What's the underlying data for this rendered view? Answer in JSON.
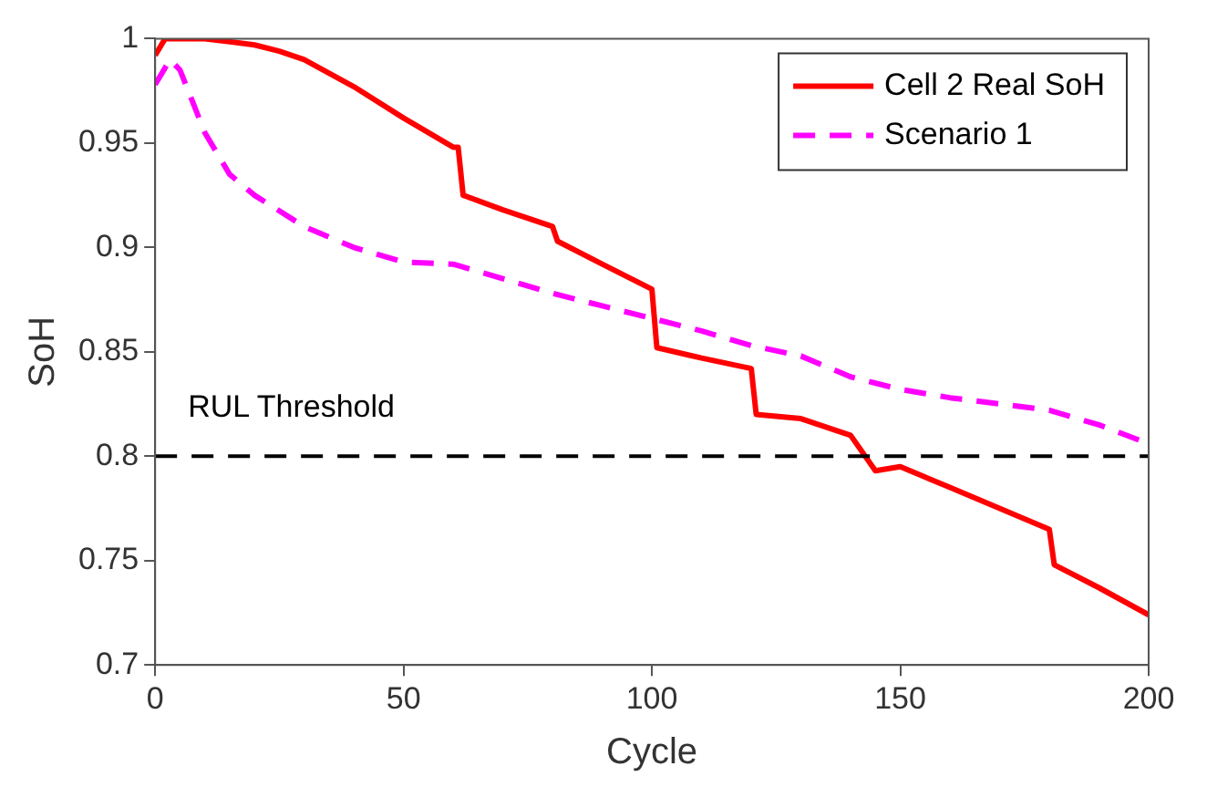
{
  "chart_data": {
    "type": "line",
    "xlabel": "Cycle",
    "ylabel": "SoH",
    "xlim": [
      0,
      200
    ],
    "xticks": [
      0,
      50,
      100,
      150,
      200
    ],
    "ylim": [
      0.7,
      1
    ],
    "yticks": [
      0.7,
      0.75,
      0.8,
      0.85,
      0.9,
      0.95,
      1
    ],
    "grid": false,
    "legend": "top right",
    "marker": "none",
    "ref_lines": [
      {
        "axis": "y",
        "value": 0.8,
        "label": "RUL Threshold",
        "color": "#000000",
        "line_style": "dashed"
      }
    ],
    "series": [
      {
        "name": "Cell 2 Real SoH",
        "color": "#ff0000",
        "line_style": "solid",
        "x": [
          0,
          2,
          5,
          10,
          20,
          25,
          30,
          40,
          50,
          60,
          61,
          62,
          70,
          80,
          81,
          90,
          100,
          101,
          110,
          120,
          121,
          130,
          140,
          145,
          150,
          160,
          170,
          180,
          181,
          190,
          200
        ],
        "values": [
          0.992,
          1.0,
          1.0,
          1.0,
          0.997,
          0.994,
          0.99,
          0.977,
          0.962,
          0.948,
          0.948,
          0.925,
          0.918,
          0.91,
          0.903,
          0.892,
          0.88,
          0.852,
          0.847,
          0.842,
          0.82,
          0.818,
          0.81,
          0.793,
          0.795,
          0.785,
          0.775,
          0.765,
          0.748,
          0.737,
          0.724
        ]
      },
      {
        "name": "Scenario 1",
        "color": "#ff00ff",
        "line_style": "dashed",
        "x": [
          0,
          3,
          5,
          10,
          15,
          20,
          30,
          40,
          50,
          60,
          70,
          80,
          90,
          100,
          110,
          120,
          130,
          140,
          150,
          160,
          170,
          180,
          190,
          200
        ],
        "values": [
          0.978,
          0.99,
          0.985,
          0.955,
          0.935,
          0.925,
          0.91,
          0.9,
          0.893,
          0.892,
          0.885,
          0.878,
          0.872,
          0.866,
          0.86,
          0.853,
          0.848,
          0.838,
          0.832,
          0.828,
          0.825,
          0.822,
          0.815,
          0.806
        ]
      }
    ]
  }
}
